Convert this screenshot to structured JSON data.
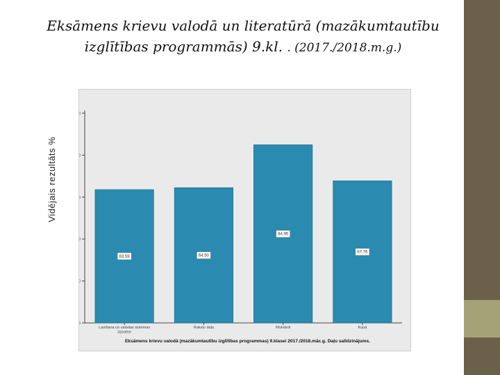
{
  "slide": {
    "title_line1": "Eksāmens krievu valodā un literatūrā (mazākumtautību",
    "title_line2a": "izglītības programmās)  9.kl. ",
    "title_line2b": ". (2017./2018.m.g.)",
    "outer_ylabel": "Vidējais rezultāts %",
    "colors": {
      "sidebar_dark": "#6b614a",
      "sidebar_light": "#a6a278"
    }
  },
  "chart_data": {
    "type": "bar",
    "categories": [
      "Lasīšana un valodas sistemas izpratne",
      "Rakstu daļa",
      "Mutvārdi",
      "Kopā"
    ],
    "category_lines": [
      [
        "Lasīšana un valodas sistemas",
        "izpratne"
      ],
      [
        "Rakstu daļa"
      ],
      [
        "Mutvārdi"
      ],
      [
        "Kopā"
      ]
    ],
    "values": [
      63.59,
      64.5,
      84.95,
      67.76
    ],
    "value_labels": [
      "63.59",
      "64.50",
      "84.95",
      "67.76"
    ],
    "ylabel": "Vidējais rezultāts %",
    "ylim": [
      0,
      100
    ],
    "yticks": [
      0,
      20,
      40,
      60,
      80,
      100
    ],
    "caption": "Eksāmens krievu valodā (mazākumtautību izglītības programmas) 9.klasei 2017./2018.māc.g. Daļu salīdzinājums.",
    "bar_color": "#2a8ab0",
    "grid": false
  }
}
